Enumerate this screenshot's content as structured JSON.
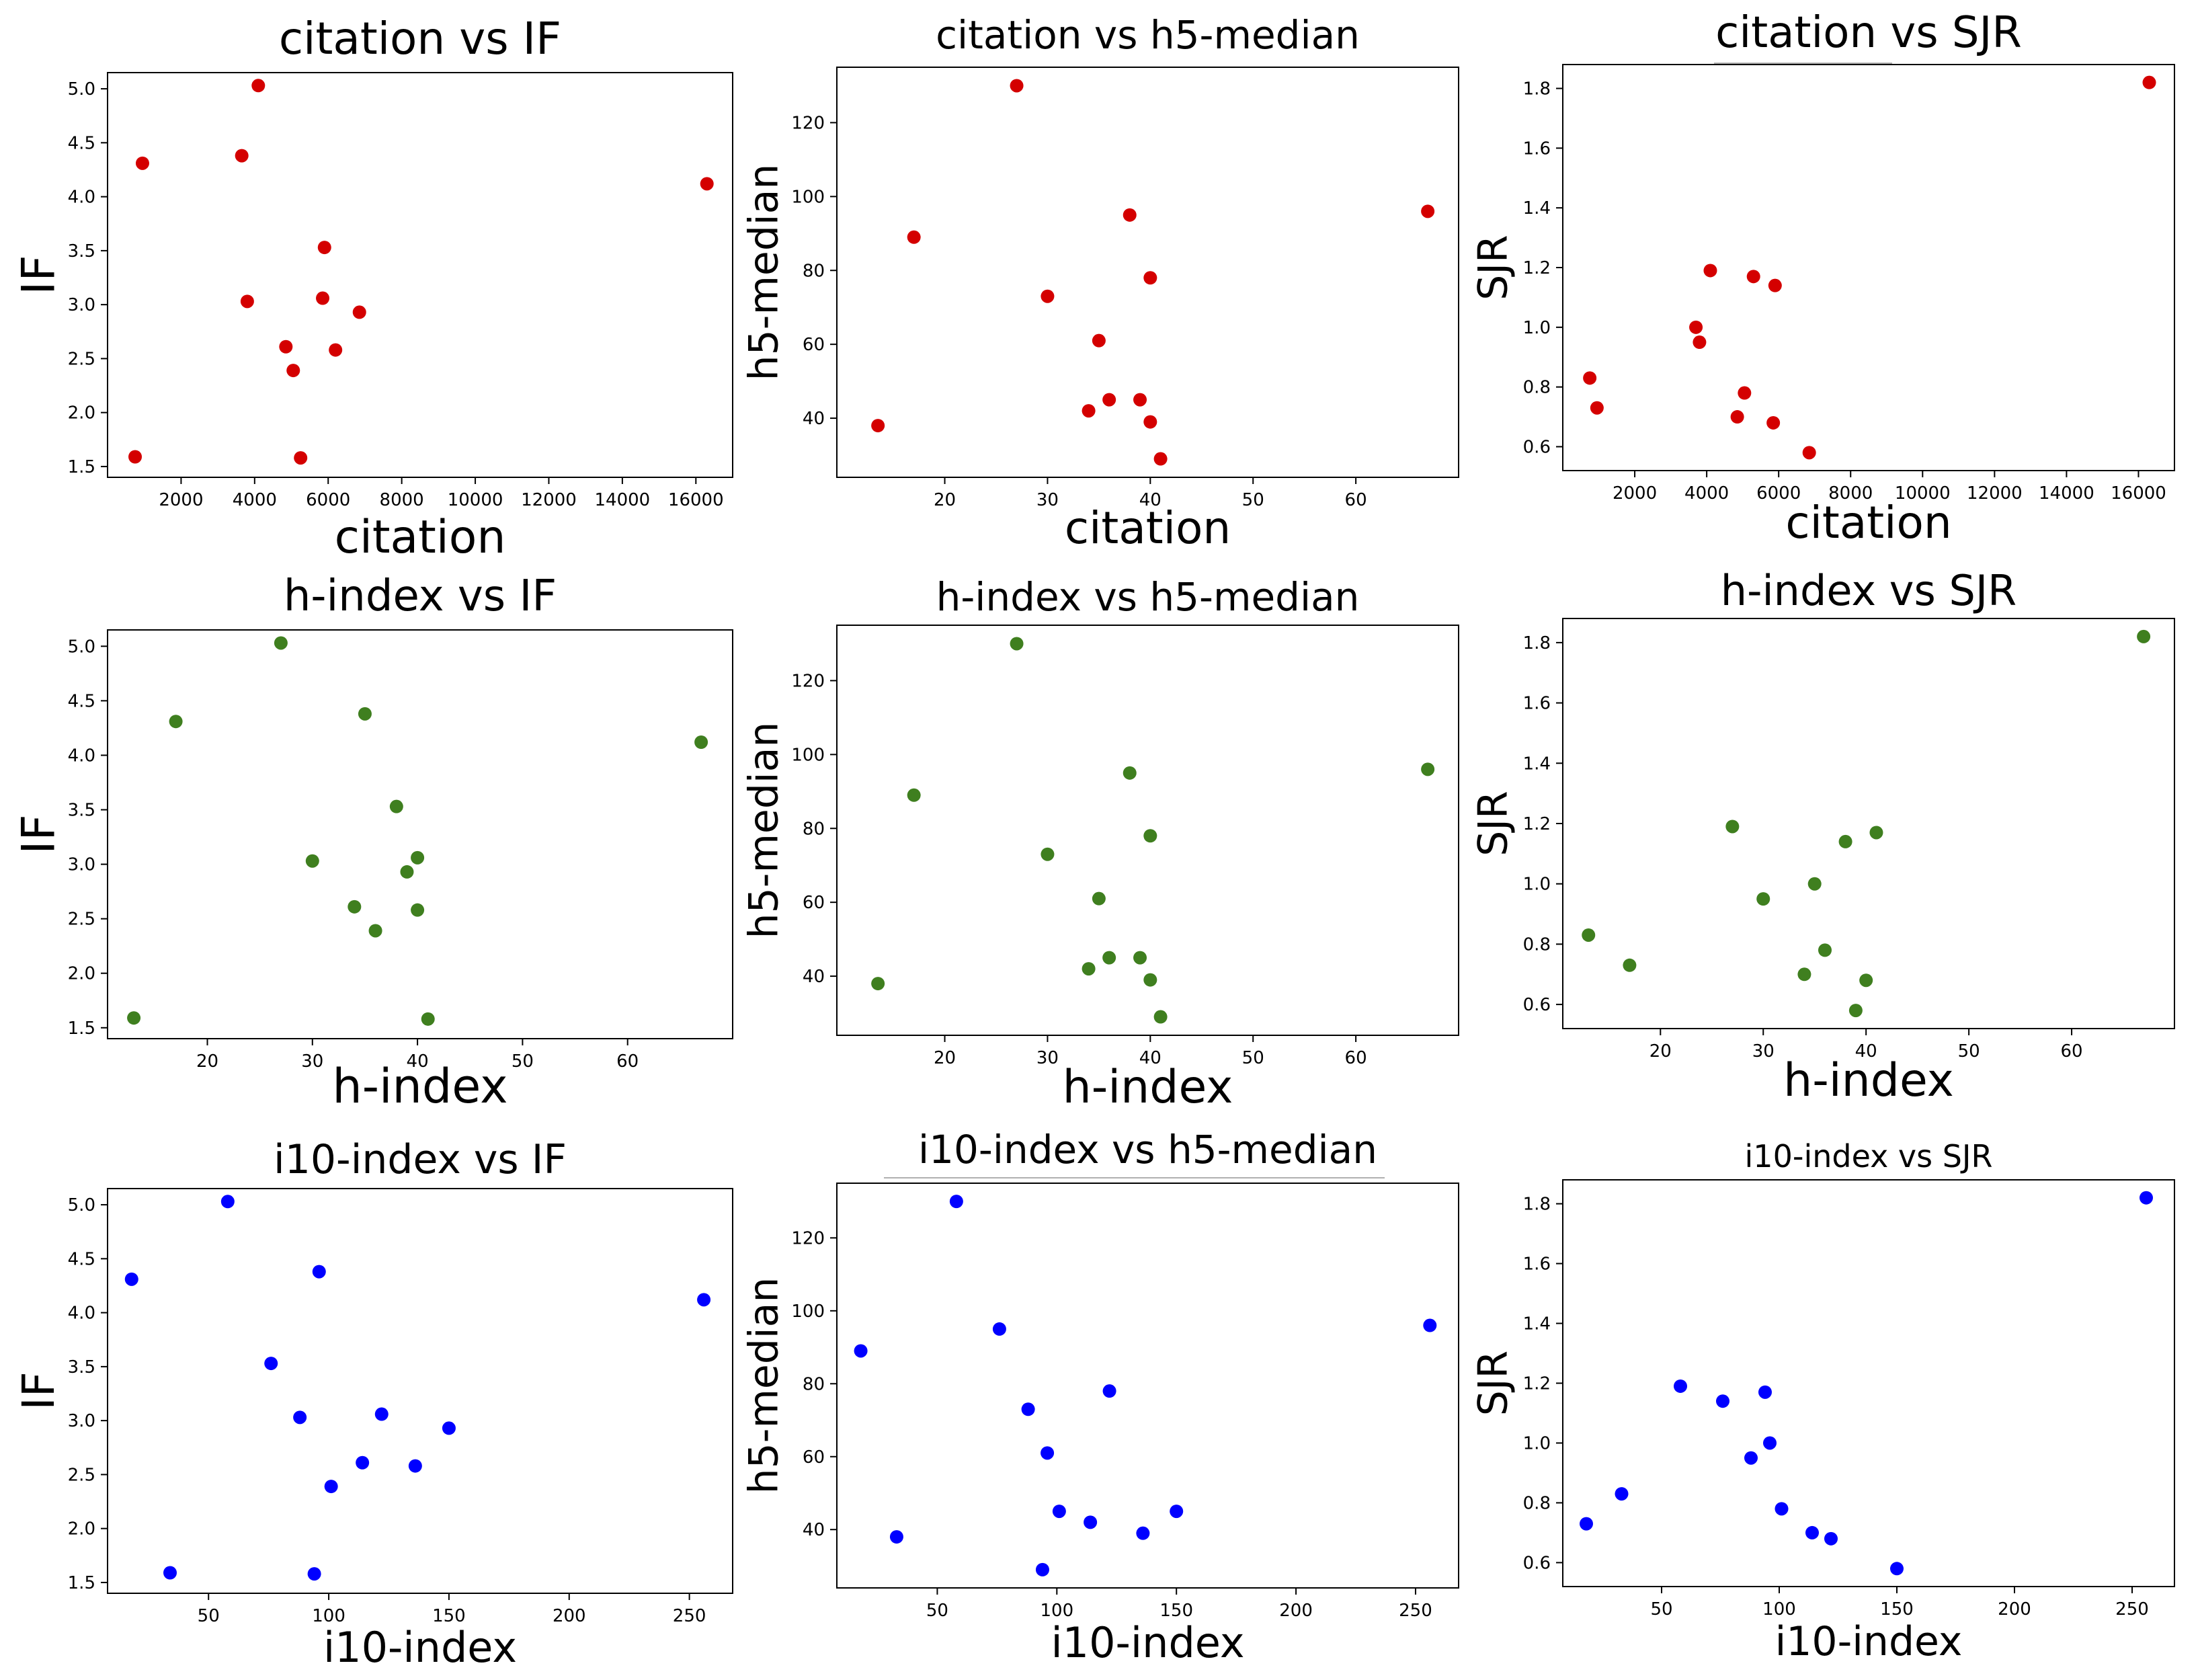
{
  "chart_data": [
    {
      "type": "scatter",
      "title": "citation vs IF",
      "xlabel": "citation",
      "ylabel": "IF",
      "color": "#d40000",
      "xlim": [
        0,
        17000
      ],
      "ylim": [
        1.4,
        5.15
      ],
      "xticks": [
        2000,
        4000,
        6000,
        8000,
        10000,
        12000,
        14000,
        16000
      ],
      "yticks": [
        1.5,
        2.0,
        2.5,
        3.0,
        3.5,
        4.0,
        4.5,
        5.0
      ],
      "x": [
        4100,
        950,
        3650,
        16300,
        5900,
        3800,
        5850,
        6850,
        4850,
        6200,
        5050,
        750,
        5250
      ],
      "y": [
        5.03,
        4.31,
        4.38,
        4.12,
        3.53,
        3.03,
        3.06,
        2.93,
        2.61,
        2.58,
        2.39,
        1.59,
        1.58
      ]
    },
    {
      "type": "scatter",
      "title": "citation vs h5-median",
      "xlabel": "citation",
      "ylabel": "h5-median",
      "color": "#d40000",
      "xlim": [
        9.5,
        70
      ],
      "ylim": [
        24,
        135
      ],
      "xticks": [
        20,
        30,
        40,
        50,
        60
      ],
      "yticks": [
        40,
        60,
        80,
        100,
        120
      ],
      "x": [
        27,
        17,
        13.5,
        38,
        67,
        30,
        40,
        35,
        34,
        36,
        39,
        40,
        41
      ],
      "y": [
        130,
        89,
        38,
        95,
        96,
        73,
        78,
        61,
        42,
        45,
        45,
        39,
        29
      ]
    },
    {
      "type": "scatter",
      "title": "citation vs SJR",
      "xlabel": "citation",
      "ylabel": "SJR",
      "color": "#d40000",
      "xlim": [
        0,
        17000
      ],
      "ylim": [
        0.52,
        1.88
      ],
      "xticks": [
        2000,
        4000,
        6000,
        8000,
        10000,
        12000,
        14000,
        16000
      ],
      "yticks": [
        0.6,
        0.8,
        1.0,
        1.2,
        1.4,
        1.6,
        1.8
      ],
      "x": [
        16300,
        4100,
        5300,
        5900,
        3700,
        3800,
        750,
        950,
        5050,
        4850,
        5850,
        6850
      ],
      "y": [
        1.82,
        1.19,
        1.17,
        1.14,
        1.0,
        0.95,
        0.83,
        0.73,
        0.78,
        0.7,
        0.68,
        0.58
      ]
    },
    {
      "type": "scatter",
      "title": "h-index vs IF",
      "xlabel": "h-index",
      "ylabel": "IF",
      "color": "#3f7f1f",
      "xlim": [
        10.5,
        70
      ],
      "ylim": [
        1.4,
        5.15
      ],
      "xticks": [
        20,
        30,
        40,
        50,
        60
      ],
      "yticks": [
        1.5,
        2.0,
        2.5,
        3.0,
        3.5,
        4.0,
        4.5,
        5.0
      ],
      "x": [
        27,
        17,
        35,
        67,
        38,
        30,
        40,
        39,
        34,
        40,
        36,
        13,
        41
      ],
      "y": [
        5.03,
        4.31,
        4.38,
        4.12,
        3.53,
        3.03,
        3.06,
        2.93,
        2.61,
        2.58,
        2.39,
        1.59,
        1.58
      ]
    },
    {
      "type": "scatter",
      "title": "h-index vs h5-median",
      "xlabel": "h-index",
      "ylabel": "h5-median",
      "color": "#3f7f1f",
      "xlim": [
        9.5,
        70
      ],
      "ylim": [
        24,
        135
      ],
      "xticks": [
        20,
        30,
        40,
        50,
        60
      ],
      "yticks": [
        40,
        60,
        80,
        100,
        120
      ],
      "x": [
        27,
        17,
        13.5,
        38,
        67,
        30,
        40,
        35,
        34,
        36,
        39,
        40,
        41
      ],
      "y": [
        130,
        89,
        38,
        95,
        96,
        73,
        78,
        61,
        42,
        45,
        45,
        39,
        29
      ]
    },
    {
      "type": "scatter",
      "title": "h-index vs SJR",
      "xlabel": "h-index",
      "ylabel": "SJR",
      "color": "#3f7f1f",
      "xlim": [
        10.5,
        70
      ],
      "ylim": [
        0.52,
        1.88
      ],
      "xticks": [
        20,
        30,
        40,
        50,
        60
      ],
      "yticks": [
        0.6,
        0.8,
        1.0,
        1.2,
        1.4,
        1.6,
        1.8
      ],
      "x": [
        67,
        27,
        41,
        38,
        35,
        30,
        13,
        17,
        36,
        34,
        40,
        39
      ],
      "y": [
        1.82,
        1.19,
        1.17,
        1.14,
        1.0,
        0.95,
        0.83,
        0.73,
        0.78,
        0.7,
        0.68,
        0.58
      ]
    },
    {
      "type": "scatter",
      "title": "i10-index vs IF",
      "xlabel": "i10-index",
      "ylabel": "IF",
      "color": "#0000ff",
      "xlim": [
        8,
        268
      ],
      "ylim": [
        1.4,
        5.15
      ],
      "xticks": [
        50,
        100,
        150,
        200,
        250
      ],
      "yticks": [
        1.5,
        2.0,
        2.5,
        3.0,
        3.5,
        4.0,
        4.5,
        5.0
      ],
      "x": [
        58,
        18,
        96,
        256,
        76,
        88,
        122,
        150,
        114,
        136,
        101,
        34,
        94
      ],
      "y": [
        5.03,
        4.31,
        4.38,
        4.12,
        3.53,
        3.03,
        3.06,
        2.93,
        2.61,
        2.58,
        2.39,
        1.59,
        1.58
      ]
    },
    {
      "type": "scatter",
      "title": "i10-index vs h5-median",
      "xlabel": "i10-index",
      "ylabel": "h5-median",
      "color": "#0000ff",
      "xlim": [
        8,
        268
      ],
      "ylim": [
        24,
        135
      ],
      "xticks": [
        50,
        100,
        150,
        200,
        250
      ],
      "yticks": [
        40,
        60,
        80,
        100,
        120
      ],
      "x": [
        58,
        18,
        33,
        76,
        256,
        88,
        122,
        96,
        101,
        114,
        150,
        136,
        94
      ],
      "y": [
        130,
        89,
        38,
        95,
        96,
        73,
        78,
        61,
        45,
        42,
        45,
        39,
        29
      ]
    },
    {
      "type": "scatter",
      "title": "i10-index vs SJR",
      "xlabel": "i10-index",
      "ylabel": "SJR",
      "color": "#0000ff",
      "xlim": [
        8,
        268
      ],
      "ylim": [
        0.52,
        1.88
      ],
      "xticks": [
        50,
        100,
        150,
        200,
        250
      ],
      "yticks": [
        0.6,
        0.8,
        1.0,
        1.2,
        1.4,
        1.6,
        1.8
      ],
      "x": [
        256,
        58,
        94,
        76,
        96,
        88,
        33,
        18,
        101,
        114,
        122,
        150
      ],
      "y": [
        1.82,
        1.19,
        1.17,
        1.14,
        1.0,
        0.95,
        0.83,
        0.73,
        0.78,
        0.7,
        0.68,
        0.58
      ]
    }
  ]
}
